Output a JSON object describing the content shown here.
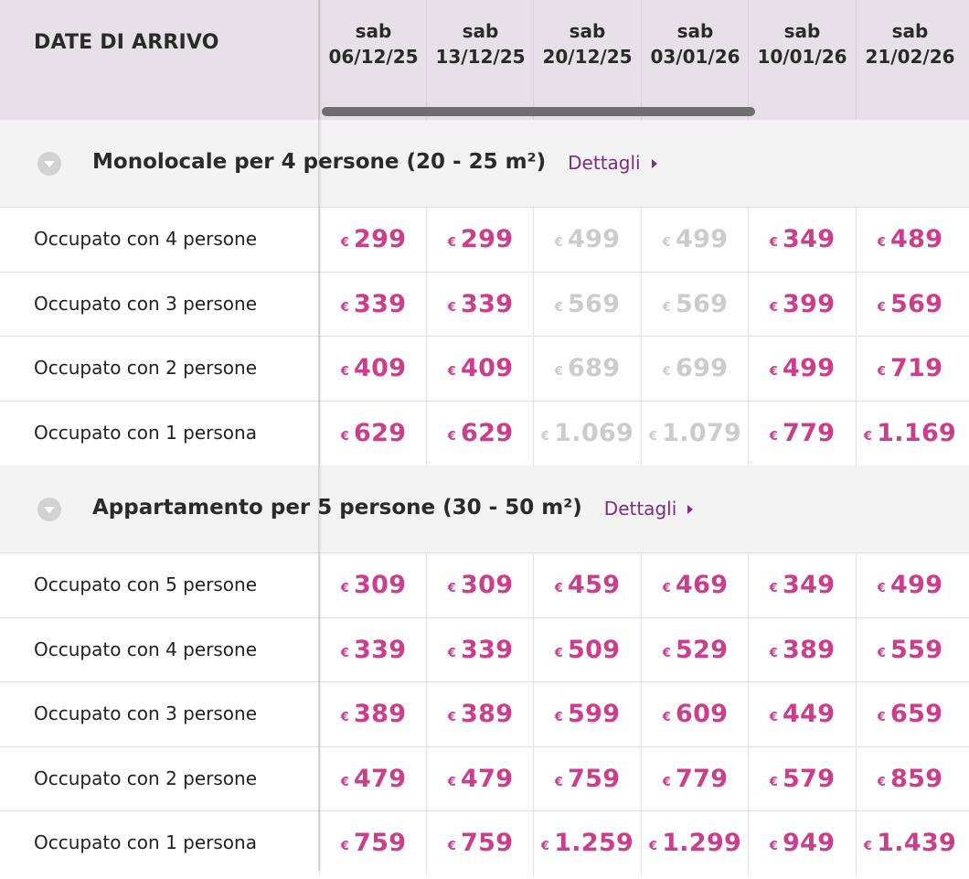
{
  "header": {
    "title": "DATE DI ARRIVO",
    "dates": [
      {
        "dow": "sab",
        "date": "06/12/25"
      },
      {
        "dow": "sab",
        "date": "13/12/25"
      },
      {
        "dow": "sab",
        "date": "20/12/25"
      },
      {
        "dow": "sab",
        "date": "03/01/26"
      },
      {
        "dow": "sab",
        "date": "10/01/26"
      },
      {
        "dow": "sab",
        "date": "21/02/26"
      }
    ]
  },
  "currency": "€",
  "details_label": "Dettagli",
  "colors": {
    "available": "#cc3d8c",
    "unavailable": "#cccccc",
    "link": "#7b2d7f",
    "header_bg": "#e8e0e8"
  },
  "sections": [
    {
      "title": "Monolocale per 4 persone (20 - 25 m²)",
      "rows": [
        {
          "label": "Occupato con 4 persone",
          "prices": [
            {
              "v": "299",
              "a": true
            },
            {
              "v": "299",
              "a": true
            },
            {
              "v": "499",
              "a": false
            },
            {
              "v": "499",
              "a": false
            },
            {
              "v": "349",
              "a": true
            },
            {
              "v": "489",
              "a": true
            }
          ]
        },
        {
          "label": "Occupato con 3 persone",
          "prices": [
            {
              "v": "339",
              "a": true
            },
            {
              "v": "339",
              "a": true
            },
            {
              "v": "569",
              "a": false
            },
            {
              "v": "569",
              "a": false
            },
            {
              "v": "399",
              "a": true
            },
            {
              "v": "569",
              "a": true
            }
          ]
        },
        {
          "label": "Occupato con 2 persone",
          "prices": [
            {
              "v": "409",
              "a": true
            },
            {
              "v": "409",
              "a": true
            },
            {
              "v": "689",
              "a": false
            },
            {
              "v": "699",
              "a": false
            },
            {
              "v": "499",
              "a": true
            },
            {
              "v": "719",
              "a": true
            }
          ]
        },
        {
          "label": "Occupato con 1 persona",
          "prices": [
            {
              "v": "629",
              "a": true
            },
            {
              "v": "629",
              "a": true
            },
            {
              "v": "1.069",
              "a": false
            },
            {
              "v": "1.079",
              "a": false
            },
            {
              "v": "779",
              "a": true
            },
            {
              "v": "1.169",
              "a": true
            }
          ]
        }
      ]
    },
    {
      "title": "Appartamento per 5 persone (30 - 50 m²)",
      "rows": [
        {
          "label": "Occupato con 5 persone",
          "prices": [
            {
              "v": "309",
              "a": true
            },
            {
              "v": "309",
              "a": true
            },
            {
              "v": "459",
              "a": true
            },
            {
              "v": "469",
              "a": true
            },
            {
              "v": "349",
              "a": true
            },
            {
              "v": "499",
              "a": true
            }
          ]
        },
        {
          "label": "Occupato con 4 persone",
          "prices": [
            {
              "v": "339",
              "a": true
            },
            {
              "v": "339",
              "a": true
            },
            {
              "v": "509",
              "a": true
            },
            {
              "v": "529",
              "a": true
            },
            {
              "v": "389",
              "a": true
            },
            {
              "v": "559",
              "a": true
            }
          ]
        },
        {
          "label": "Occupato con 3 persone",
          "prices": [
            {
              "v": "389",
              "a": true
            },
            {
              "v": "389",
              "a": true
            },
            {
              "v": "599",
              "a": true
            },
            {
              "v": "609",
              "a": true
            },
            {
              "v": "449",
              "a": true
            },
            {
              "v": "659",
              "a": true
            }
          ]
        },
        {
          "label": "Occupato con 2 persone",
          "prices": [
            {
              "v": "479",
              "a": true
            },
            {
              "v": "479",
              "a": true
            },
            {
              "v": "759",
              "a": true
            },
            {
              "v": "779",
              "a": true
            },
            {
              "v": "579",
              "a": true
            },
            {
              "v": "859",
              "a": true
            }
          ]
        },
        {
          "label": "Occupato con 1 persona",
          "prices": [
            {
              "v": "759",
              "a": true
            },
            {
              "v": "759",
              "a": true
            },
            {
              "v": "1.259",
              "a": true
            },
            {
              "v": "1.299",
              "a": true
            },
            {
              "v": "949",
              "a": true
            },
            {
              "v": "1.439",
              "a": true
            }
          ]
        }
      ]
    }
  ]
}
